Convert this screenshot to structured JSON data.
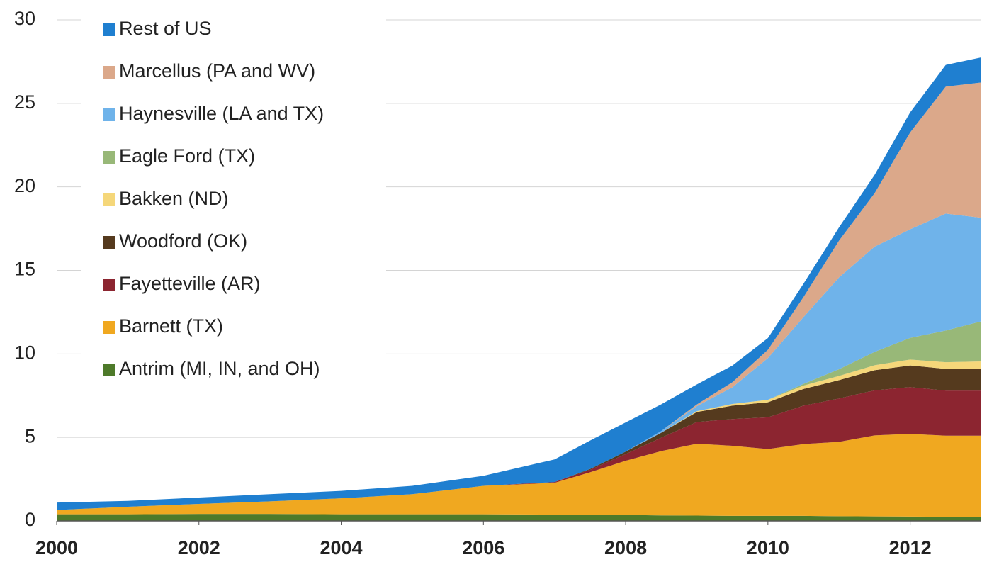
{
  "chart_data": {
    "type": "stacked_area",
    "x": [
      2000,
      2001,
      2002,
      2003,
      2004,
      2005,
      2006,
      2007,
      2007.5,
      2008,
      2008.5,
      2009,
      2009.5,
      2010,
      2010.5,
      2011,
      2011.5,
      2012,
      2012.5,
      2013
    ],
    "xlim": [
      2000,
      2013
    ],
    "xticks": [
      2000,
      2002,
      2004,
      2006,
      2008,
      2010,
      2012
    ],
    "ylim": [
      0,
      30
    ],
    "yticks": [
      0,
      5,
      10,
      15,
      20,
      25,
      30
    ],
    "grid": true,
    "legend": "upper left",
    "series": [
      {
        "name": "Antrim (MI, IN, and OH)",
        "color": "#4e7a2a",
        "values": [
          0.4,
          0.4,
          0.42,
          0.42,
          0.4,
          0.4,
          0.4,
          0.38,
          0.36,
          0.35,
          0.33,
          0.32,
          0.3,
          0.3,
          0.3,
          0.28,
          0.27,
          0.26,
          0.25,
          0.25
        ]
      },
      {
        "name": "Barnett (TX)",
        "color": "#f0a820",
        "values": [
          0.25,
          0.45,
          0.6,
          0.75,
          0.95,
          1.2,
          1.7,
          1.9,
          2.55,
          3.25,
          3.85,
          4.3,
          4.2,
          4.0,
          4.3,
          4.45,
          4.85,
          4.95,
          4.85,
          4.85
        ]
      },
      {
        "name": "Fayetteville (AR)",
        "color": "#8c2530",
        "values": [
          0,
          0,
          0,
          0,
          0,
          0,
          0,
          0.05,
          0.15,
          0.4,
          0.8,
          1.3,
          1.6,
          1.9,
          2.3,
          2.6,
          2.7,
          2.8,
          2.7,
          2.7
        ]
      },
      {
        "name": "Woodford (OK)",
        "color": "#553a1e",
        "values": [
          0,
          0,
          0,
          0,
          0,
          0,
          0,
          0,
          0.05,
          0.15,
          0.3,
          0.6,
          0.8,
          0.9,
          1.0,
          1.1,
          1.2,
          1.3,
          1.3,
          1.3
        ]
      },
      {
        "name": "Bakken (ND)",
        "color": "#f5d77a",
        "values": [
          0,
          0,
          0,
          0,
          0,
          0,
          0,
          0,
          0,
          0,
          0,
          0.05,
          0.1,
          0.15,
          0.2,
          0.25,
          0.3,
          0.35,
          0.4,
          0.45
        ]
      },
      {
        "name": "Eagle Ford (TX)",
        "color": "#98b878",
        "values": [
          0,
          0,
          0,
          0,
          0,
          0,
          0,
          0,
          0,
          0,
          0,
          0,
          0,
          0,
          0.1,
          0.4,
          0.8,
          1.3,
          1.9,
          2.4
        ]
      },
      {
        "name": "Haynesville (LA and TX)",
        "color": "#6fb3ea",
        "values": [
          0,
          0,
          0,
          0,
          0,
          0,
          0,
          0,
          0,
          0,
          0.1,
          0.3,
          1.0,
          2.5,
          4.0,
          5.5,
          6.3,
          6.5,
          7.0,
          6.2
        ]
      },
      {
        "name": "Marcellus (PA and WV)",
        "color": "#dba88a",
        "values": [
          0,
          0,
          0,
          0,
          0,
          0,
          0,
          0,
          0,
          0,
          0,
          0.1,
          0.3,
          0.5,
          1.2,
          2.2,
          3.2,
          5.8,
          7.6,
          8.1
        ]
      },
      {
        "name": "Rest of US",
        "color": "#1f7fd0",
        "values": [
          0.45,
          0.35,
          0.38,
          0.43,
          0.45,
          0.5,
          0.6,
          1.35,
          1.7,
          1.75,
          1.6,
          1.2,
          1.0,
          0.7,
          0.8,
          0.8,
          1.1,
          1.2,
          1.3,
          1.5
        ]
      }
    ]
  }
}
